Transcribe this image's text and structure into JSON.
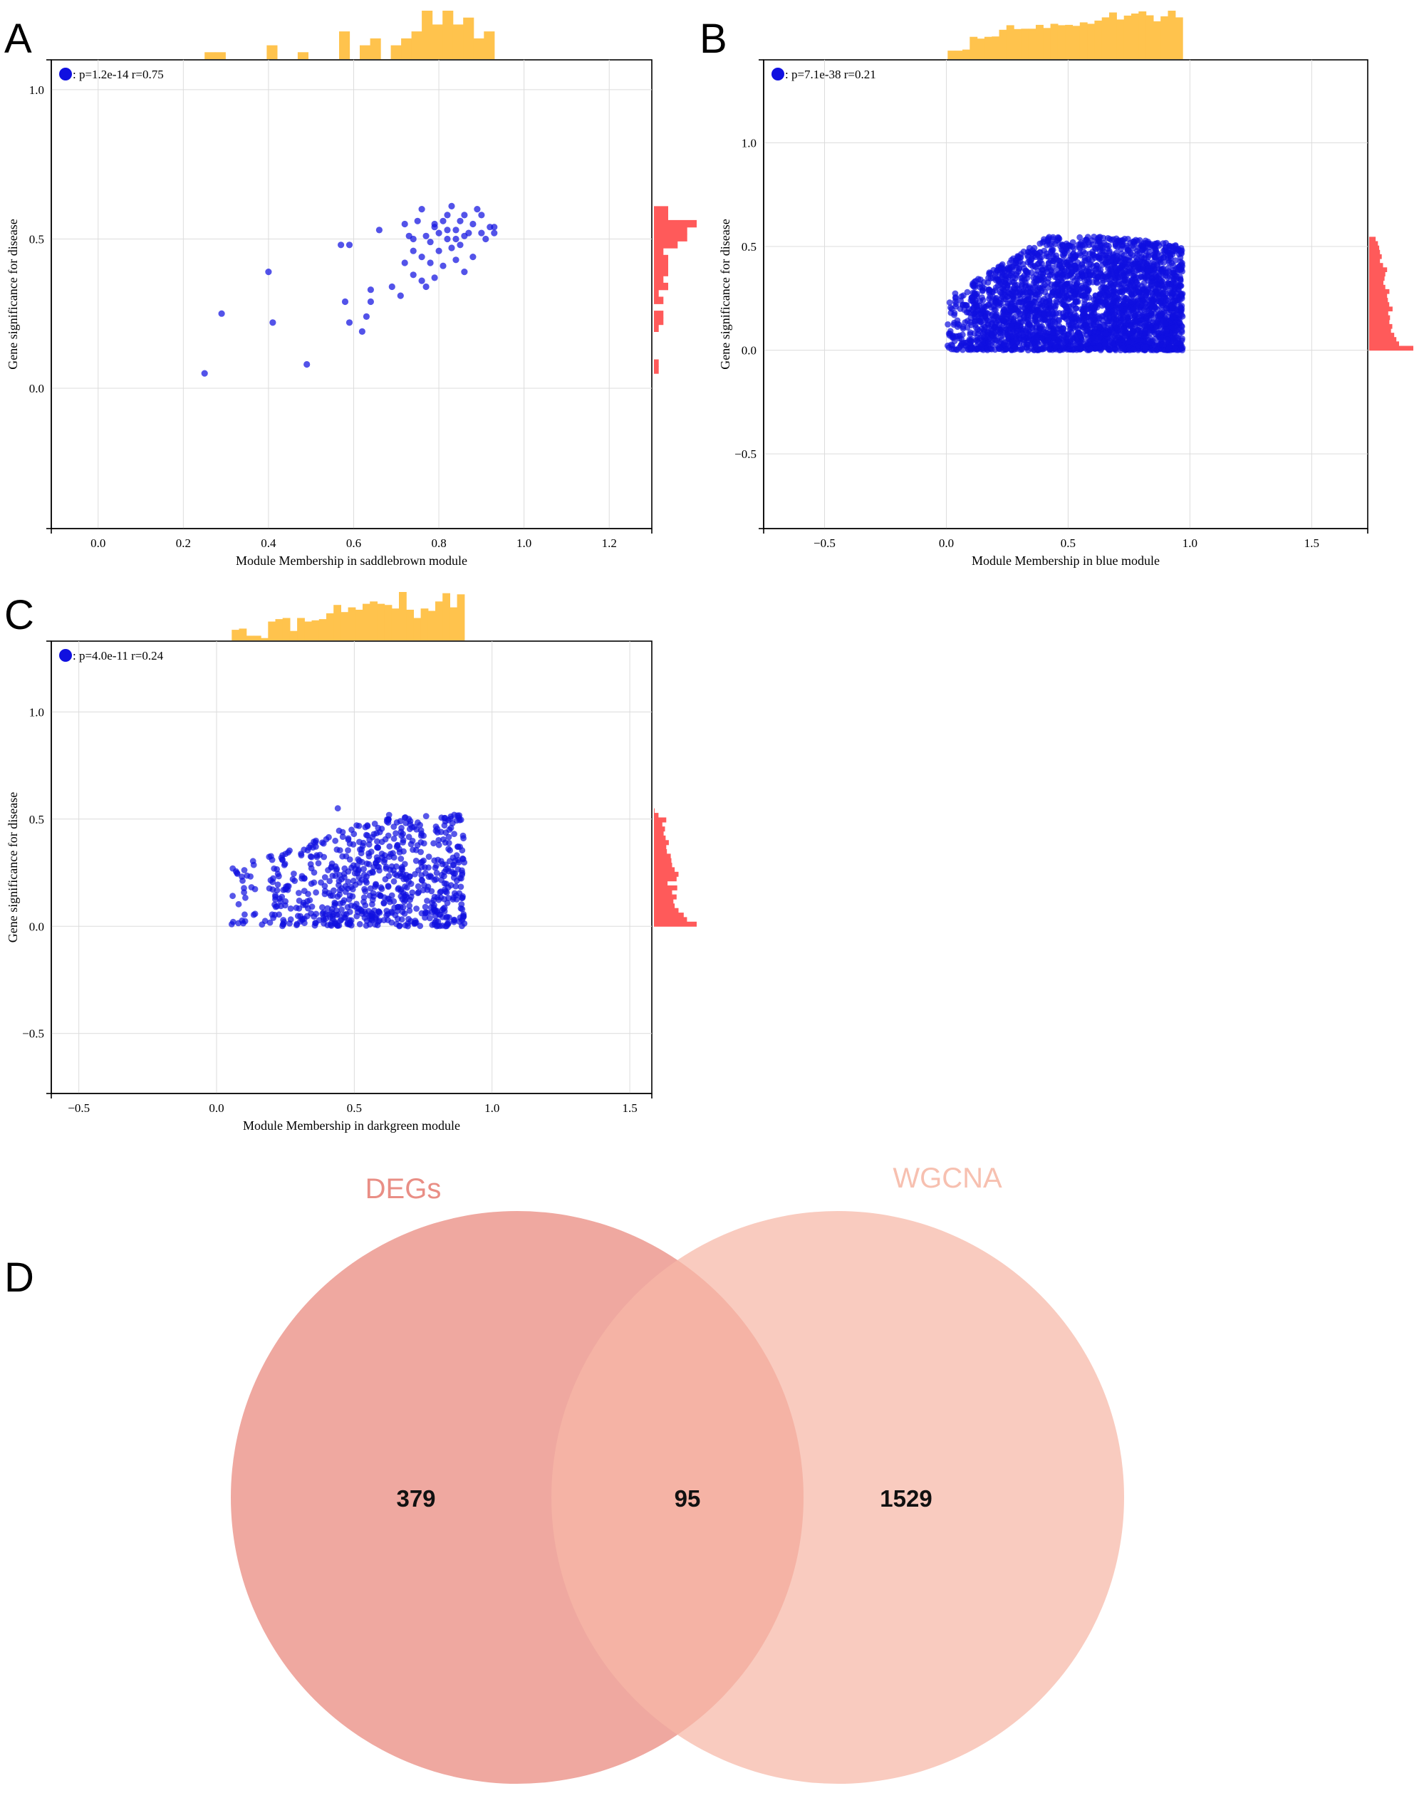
{
  "panels": [
    "A",
    "B",
    "C",
    "D"
  ],
  "chart_data": [
    {
      "type": "scatter",
      "panel": "A",
      "xlabel": "Module Membership in saddlebrown module",
      "ylabel": "Gene significance for disease",
      "legend": "p=1.2e-14 r=0.75",
      "legend_placement": "top-left",
      "xlim": [
        -0.11,
        1.3
      ],
      "ylim": [
        -0.47,
        1.1
      ],
      "xticks": [
        "0.0",
        "0.2",
        "0.4",
        "0.6",
        "0.8",
        "1.0",
        "1.2"
      ],
      "yticks": [
        "0.0",
        "0.5",
        "1.0"
      ],
      "grid": true,
      "point_color": "#1010e0",
      "top_histogram_color": "#ffc34d",
      "right_histogram_color": "#ff5a5a",
      "points": [
        [
          0.25,
          0.05
        ],
        [
          0.29,
          0.25
        ],
        [
          0.4,
          0.39
        ],
        [
          0.41,
          0.22
        ],
        [
          0.49,
          0.08
        ],
        [
          0.57,
          0.48
        ],
        [
          0.59,
          0.48
        ],
        [
          0.58,
          0.29
        ],
        [
          0.59,
          0.22
        ],
        [
          0.62,
          0.19
        ],
        [
          0.63,
          0.24
        ],
        [
          0.64,
          0.29
        ],
        [
          0.64,
          0.33
        ],
        [
          0.66,
          0.53
        ],
        [
          0.69,
          0.34
        ],
        [
          0.71,
          0.31
        ],
        [
          0.72,
          0.55
        ],
        [
          0.73,
          0.51
        ],
        [
          0.74,
          0.46
        ],
        [
          0.74,
          0.38
        ],
        [
          0.75,
          0.56
        ],
        [
          0.76,
          0.44
        ],
        [
          0.76,
          0.6
        ],
        [
          0.77,
          0.51
        ],
        [
          0.77,
          0.34
        ],
        [
          0.78,
          0.42
        ],
        [
          0.78,
          0.49
        ],
        [
          0.79,
          0.54
        ],
        [
          0.79,
          0.37
        ],
        [
          0.8,
          0.46
        ],
        [
          0.8,
          0.52
        ],
        [
          0.81,
          0.56
        ],
        [
          0.81,
          0.41
        ],
        [
          0.82,
          0.5
        ],
        [
          0.82,
          0.53
        ],
        [
          0.83,
          0.47
        ],
        [
          0.83,
          0.61
        ],
        [
          0.84,
          0.53
        ],
        [
          0.84,
          0.43
        ],
        [
          0.85,
          0.56
        ],
        [
          0.85,
          0.48
        ],
        [
          0.86,
          0.51
        ],
        [
          0.86,
          0.58
        ],
        [
          0.86,
          0.39
        ],
        [
          0.87,
          0.52
        ],
        [
          0.88,
          0.55
        ],
        [
          0.88,
          0.44
        ],
        [
          0.89,
          0.6
        ],
        [
          0.9,
          0.58
        ],
        [
          0.9,
          0.52
        ],
        [
          0.91,
          0.5
        ],
        [
          0.92,
          0.54
        ],
        [
          0.93,
          0.52
        ],
        [
          0.93,
          0.54
        ],
        [
          0.72,
          0.42
        ],
        [
          0.76,
          0.36
        ],
        [
          0.79,
          0.55
        ],
        [
          0.82,
          0.58
        ],
        [
          0.84,
          0.5
        ],
        [
          0.74,
          0.5
        ]
      ]
    },
    {
      "type": "scatter",
      "panel": "B",
      "xlabel": "Module Membership in blue module",
      "ylabel": "Gene significance for disease",
      "legend": "p=7.1e-38 r=0.21",
      "legend_placement": "top-left",
      "xlim": [
        -0.75,
        1.73
      ],
      "ylim": [
        -0.86,
        1.4
      ],
      "xticks": [
        "-0.5",
        "0.0",
        "0.5",
        "1.0",
        "1.5"
      ],
      "yticks": [
        "-0.5",
        "0.0",
        "0.5",
        "1.0"
      ],
      "grid": true,
      "point_color": "#1010e0",
      "top_histogram_color": "#ffc34d",
      "right_histogram_color": "#ff5a5a",
      "cloud": {
        "x_range": [
          0.0,
          0.97
        ],
        "y_range": [
          0.0,
          0.6
        ],
        "density": "dense, ~3000 genes"
      }
    },
    {
      "type": "scatter",
      "panel": "C",
      "xlabel": "Module Membership in darkgreen module",
      "ylabel": "Gene significance for disease",
      "legend": "p=4.0e-11 r=0.24",
      "legend_placement": "top-left",
      "xlim": [
        -0.6,
        1.58
      ],
      "ylim": [
        -0.78,
        1.33
      ],
      "xticks": [
        "-0.5",
        "0.0",
        "0.5",
        "1.0",
        "1.5"
      ],
      "yticks": [
        "-0.5",
        "0.0",
        "0.5",
        "1.0"
      ],
      "grid": true,
      "point_color": "#1010e0",
      "top_histogram_color": "#ffc34d",
      "right_histogram_color": "#ff5a5a",
      "cloud": {
        "x_range": [
          0.05,
          0.92
        ],
        "y_range": [
          0.0,
          0.55
        ],
        "density": "~700 genes"
      }
    },
    {
      "type": "venn",
      "panel": "D",
      "sets": [
        {
          "name": "DEGs",
          "only": "379",
          "color": "#e9867b",
          "label_color": "#e98e85"
        },
        {
          "name": "WGCNA",
          "only": "1529",
          "color": "#f6b7a6",
          "label_color": "#f7c0b0"
        }
      ],
      "intersection": "95"
    }
  ]
}
